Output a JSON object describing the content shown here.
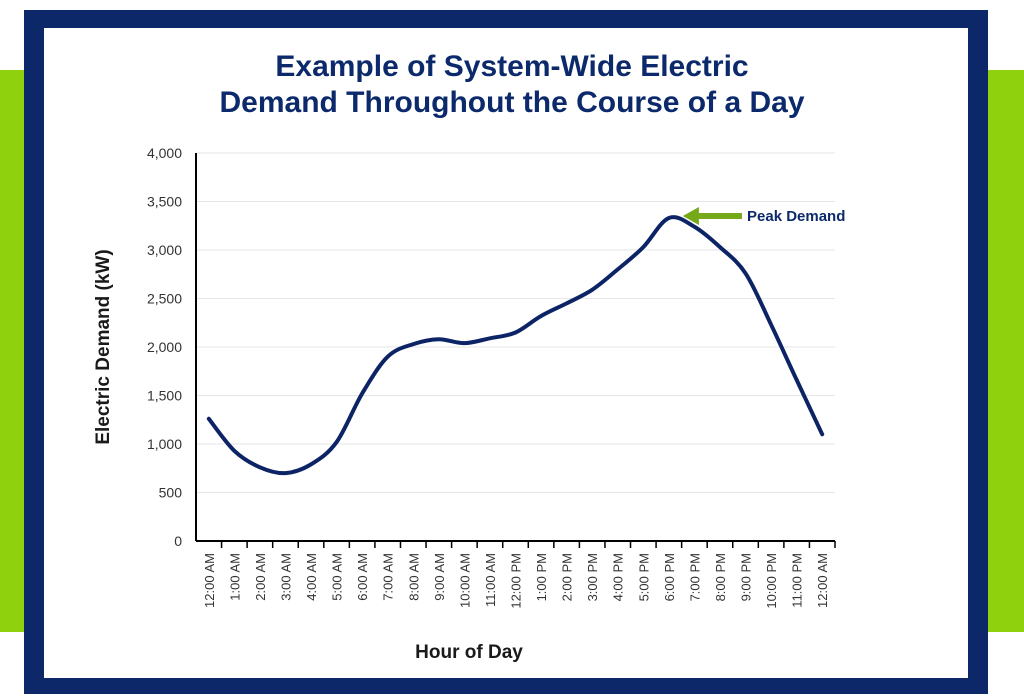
{
  "colors": {
    "frame": "#0c2869",
    "accent_bar": "#8fd10d",
    "line": "#0c2466",
    "title": "#0c2a6b",
    "arrow": "#76a91a"
  },
  "chart_data": {
    "type": "line",
    "title_line1": "Example of System-Wide Electric",
    "title_line2": "Demand Throughout the Course of a Day",
    "xlabel": "Hour of Day",
    "ylabel": "Electric Demand  (kW)",
    "categories": [
      "12:00 AM",
      "1:00 AM",
      "2:00 AM",
      "3:00 AM",
      "4:00 AM",
      "5:00 AM",
      "6:00 AM",
      "7:00 AM",
      "8:00 AM",
      "9:00 AM",
      "10:00 AM",
      "11:00 AM",
      "12:00 PM",
      "1:00 PM",
      "2:00 PM",
      "3:00 PM",
      "4:00 PM",
      "5:00 PM",
      "6:00 PM",
      "7:00 PM",
      "8:00 PM",
      "9:00 PM",
      "10:00 PM",
      "11:00 PM",
      "12:00 AM"
    ],
    "values": [
      1260,
      930,
      760,
      700,
      790,
      1020,
      1520,
      1900,
      2030,
      2080,
      2040,
      2090,
      2150,
      2320,
      2450,
      2590,
      2800,
      3030,
      3330,
      3240,
      3030,
      2760,
      2230,
      1660,
      1100
    ],
    "ylim": [
      0,
      4000
    ],
    "yticks": [
      0,
      500,
      1000,
      1500,
      2000,
      2500,
      3000,
      3500,
      4000
    ],
    "ytick_labels": [
      "0",
      "500",
      "1,000",
      "1,500",
      "2,000",
      "2,500",
      "3,000",
      "3,500",
      "4,000"
    ],
    "grid": true,
    "legend": "none",
    "annotation": {
      "text": "Peak Demand",
      "category_index": 18
    }
  }
}
